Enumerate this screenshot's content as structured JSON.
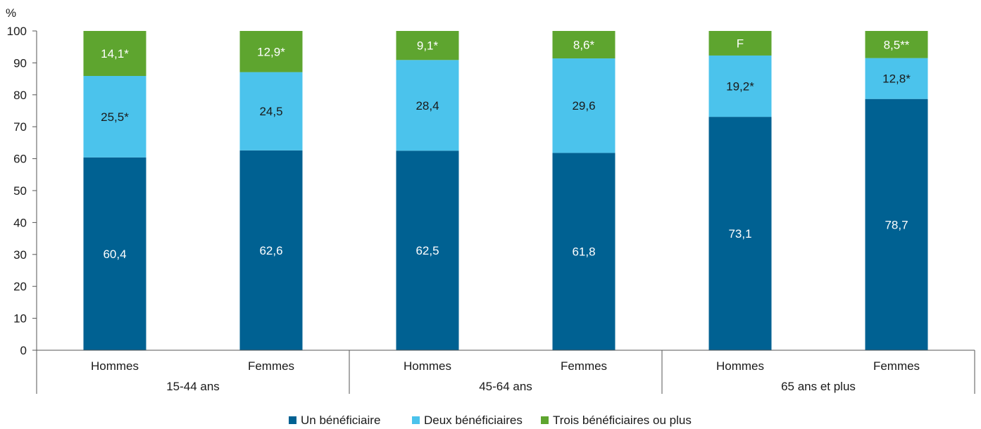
{
  "chart_data": {
    "type": "bar",
    "stacked": true,
    "y_unit": "%",
    "ylim": [
      0,
      100
    ],
    "yticks": [
      0,
      10,
      20,
      30,
      40,
      50,
      60,
      70,
      80,
      90,
      100
    ],
    "groups": [
      {
        "label": "15-44 ans",
        "categories": [
          "Hommes",
          "Femmes"
        ]
      },
      {
        "label": "45-64 ans",
        "categories": [
          "Hommes",
          "Femmes"
        ]
      },
      {
        "label": "65 ans et plus",
        "categories": [
          "Hommes",
          "Femmes"
        ]
      }
    ],
    "series": [
      {
        "name": "Un bénéficiaire",
        "color": "#006192",
        "label_color": "#ffffff",
        "values": [
          60.4,
          62.6,
          62.5,
          61.8,
          73.1,
          78.7
        ],
        "labels": [
          "60,4",
          "62,6",
          "62,5",
          "61,8",
          "73,1",
          "78,7"
        ]
      },
      {
        "name": "Deux bénéficiaires",
        "color": "#4bc3ec",
        "label_color": "#1a1a1a",
        "values": [
          25.5,
          24.5,
          28.4,
          29.6,
          19.2,
          12.8
        ],
        "labels": [
          "25,5*",
          "24,5",
          "28,4",
          "29,6",
          "19,2*",
          "12,8*"
        ]
      },
      {
        "name": "Trois bénéficiaires ou plus",
        "color": "#5ea52f",
        "label_color": "#ffffff",
        "values": [
          14.1,
          12.9,
          9.1,
          8.6,
          7.7,
          8.5
        ],
        "labels": [
          "14,1*",
          "12,9*",
          "9,1*",
          "8,6*",
          "F",
          "8,5**"
        ]
      }
    ],
    "legend_position": "bottom"
  }
}
